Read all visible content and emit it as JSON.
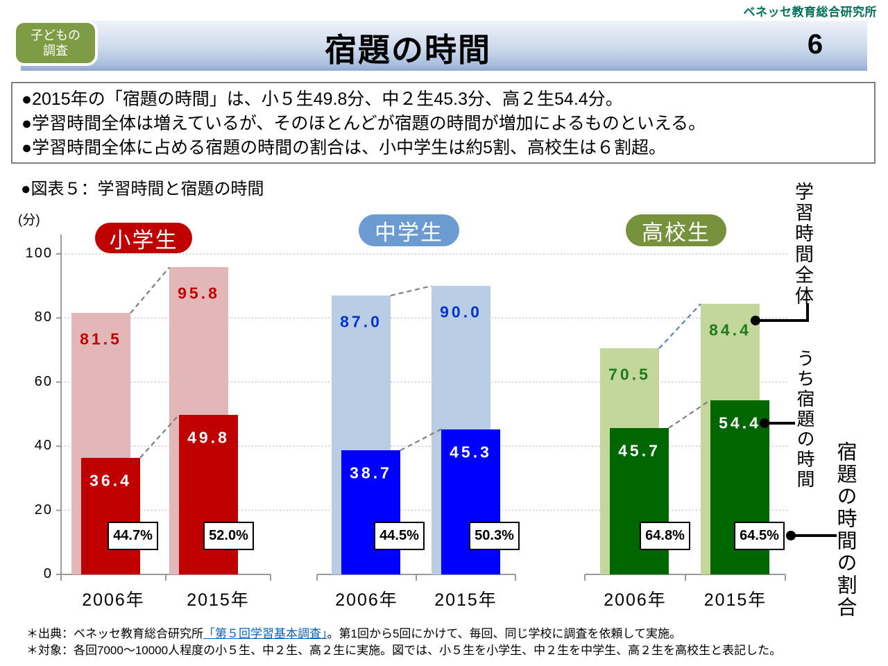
{
  "logo": "ベネッセ教育総合研究所",
  "header": {
    "badge_line1": "子どもの",
    "badge_line2": "調査",
    "title": "宿題の時間",
    "page_number": "6"
  },
  "summary": {
    "bullets": [
      "●2015年の「宿題の時間」は、小５生49.8分、中２生45.3分、高２生54.4分。",
      "●学習時間全体は増えているが、そのほとんどが宿題の時間が増加によるものといえる。",
      "●学習時間全体に占める宿題の時間の割合は、小中学生は約5割、高校生は６割超。"
    ]
  },
  "figure_title": "●図表５：学習時間と宿題の時間",
  "chart_data": {
    "type": "bar",
    "title": "学習時間と宿題の時間",
    "unit_label": "(分)",
    "ylim": [
      0,
      100
    ],
    "yticks": [
      0,
      20,
      40,
      60,
      80,
      100
    ],
    "grid": "dotted horizontal",
    "categories": [
      "2006年",
      "2015年"
    ],
    "series_meaning": {
      "total": "学習時間全体",
      "homework": "うち宿題の時間",
      "ratio": "宿題の時間の割合"
    },
    "groups": [
      {
        "name": "小学生",
        "total": [
          81.5,
          95.8
        ],
        "homework": [
          36.4,
          49.8
        ],
        "ratio": [
          "44.7%",
          "52.0%"
        ],
        "badge_color": "#C00000",
        "total_color": "#E3B7B7",
        "homework_color": "#C00000",
        "value_label_color": "#C00000"
      },
      {
        "name": "中学生",
        "total": [
          87.0,
          90.0
        ],
        "homework": [
          38.7,
          45.3
        ],
        "ratio": [
          "44.5%",
          "50.3%"
        ],
        "badge_color": "#6C9BD2",
        "total_color": "#B9CDE5",
        "homework_color": "#0000FE",
        "value_label_color": "#0033CC"
      },
      {
        "name": "高校生",
        "total": [
          70.5,
          84.4
        ],
        "homework": [
          45.7,
          54.4
        ],
        "ratio": [
          "64.8%",
          "64.5%"
        ],
        "badge_color": "#76923C",
        "total_color": "#C3D69B",
        "homework_color": "#006600",
        "value_label_color": "#1E7A1E"
      }
    ],
    "annotations": [
      "学習時間全体",
      "うち宿題の時間",
      "宿題の時間の割合"
    ]
  },
  "footnotes": {
    "source_prefix": "＊出典：ベネッセ教育総合研究所",
    "source_link": "「第５回学習基本調査」",
    "source_suffix": "。第1回から5回にかけて、毎回、同じ学校に調査を依頼して実施。",
    "target": "＊対象：各回7000～10000人程度の小５生、中２生、高２生に実施。図では、小５生を小学生、中２生を中学生、高２生を高校生と表記した。"
  }
}
